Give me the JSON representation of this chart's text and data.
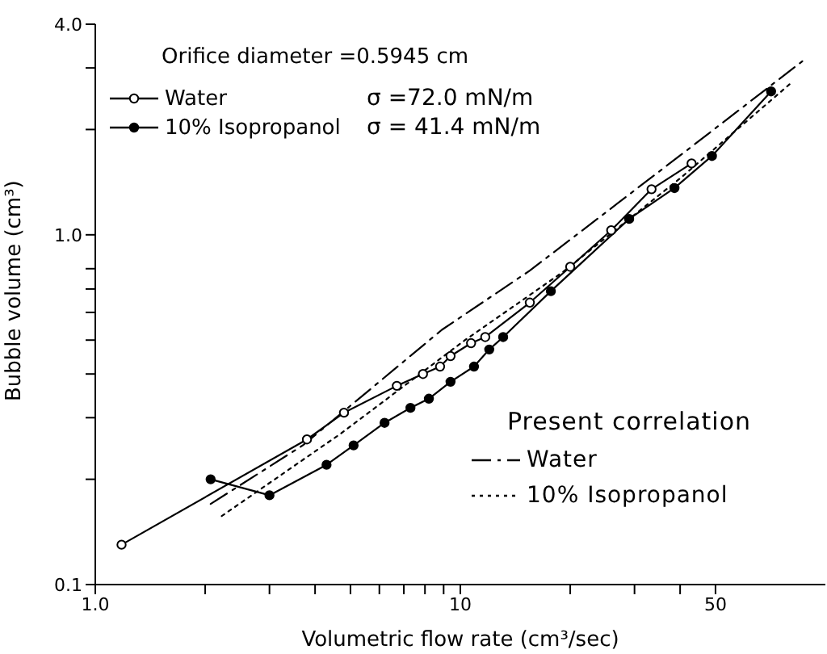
{
  "chart_data": {
    "type": "line",
    "xlabel": "Volumetric flow rate (cm³/sec)",
    "ylabel": "Bubble volume (cm³)",
    "log": "xy",
    "legend": "top left",
    "legend_title": "Present correlation",
    "xlim": [
      1,
      100
    ],
    "ylim": [
      0.1,
      4
    ],
    "xticks": [
      {
        "value": 1,
        "label": "1.0"
      },
      {
        "value": 2,
        "label": null
      },
      {
        "value": 3,
        "label": null
      },
      {
        "value": 4,
        "label": null
      },
      {
        "value": 5,
        "label": null
      },
      {
        "value": 6,
        "label": null
      },
      {
        "value": 7,
        "label": null
      },
      {
        "value": 8,
        "label": null
      },
      {
        "value": 9,
        "label": null
      },
      10,
      {
        "value": 20,
        "label": null
      },
      {
        "value": 30,
        "label": null
      },
      {
        "value": 40,
        "label": null
      },
      50
    ],
    "yticks": [
      0.1,
      {
        "value": 0.2,
        "label": null
      },
      {
        "value": 0.3,
        "label": null
      },
      {
        "value": 0.4,
        "label": null
      },
      {
        "value": 0.5,
        "label": null
      },
      {
        "value": 0.6,
        "label": null
      },
      {
        "value": 0.7,
        "label": null
      },
      {
        "value": 0.8,
        "label": null
      },
      {
        "value": 1,
        "label": "1.0"
      },
      {
        "value": 2,
        "label": null
      },
      {
        "value": 3,
        "label": null
      },
      {
        "value": 4,
        "label": "4.0"
      }
    ],
    "annotations": [
      "Orifice diameter =0.5945 cm",
      "σ =72.0  mN/m",
      "σ = 41.4  mN/m"
    ],
    "series": [
      {
        "name": "Water",
        "color": "#000000",
        "marker": "circle",
        "line_style": "solid",
        "x": [
          1.18,
          3.8,
          4.8,
          6.7,
          7.9,
          8.8,
          9.4,
          10.7,
          11.7,
          15.5,
          20,
          25.9,
          33.4,
          43
        ],
        "values": [
          0.13,
          0.26,
          0.31,
          0.37,
          0.4,
          0.42,
          0.45,
          0.49,
          0.51,
          0.64,
          0.81,
          1.03,
          1.35,
          1.6
        ]
      },
      {
        "name": "10% Isopropanol",
        "color": "#000000",
        "marker": "circle",
        "line_style": "solid",
        "x": [
          2.07,
          3.0,
          4.3,
          5.1,
          6.2,
          7.3,
          8.2,
          9.4,
          10.9,
          12.0,
          13.1,
          17.7,
          29,
          38.6,
          48.9,
          71
        ],
        "values": [
          0.2,
          0.18,
          0.22,
          0.25,
          0.29,
          0.32,
          0.34,
          0.38,
          0.42,
          0.47,
          0.51,
          0.69,
          1.11,
          1.36,
          1.68,
          2.57
        ]
      },
      {
        "name": "Water",
        "color": "#000000",
        "marker": "none",
        "line_style": "dashed",
        "x": [
          2.07,
          3.7,
          8.9,
          15.5,
          41.9,
          88
        ],
        "values": [
          0.17,
          0.25,
          0.535,
          0.79,
          1.75,
          3.18
        ]
      },
      {
        "name": "10% Isopropanol",
        "color": "#000000",
        "marker": "none",
        "line_style": "dotted",
        "x": [
          2.22,
          4.7,
          10.3,
          19,
          40,
          80
        ],
        "values": [
          0.157,
          0.27,
          0.5,
          0.78,
          1.45,
          2.7
        ]
      }
    ]
  }
}
